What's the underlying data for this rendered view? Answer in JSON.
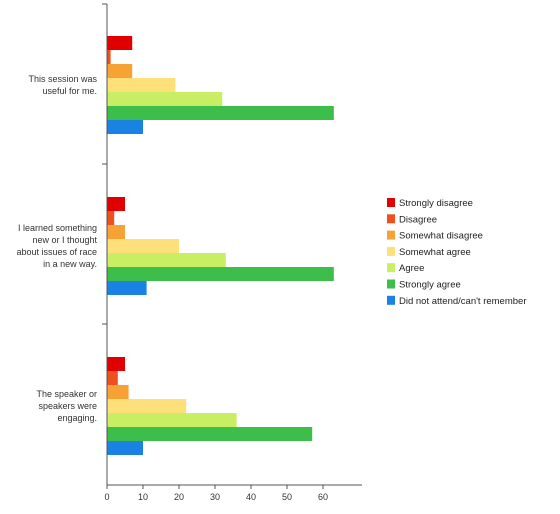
{
  "chart_data": {
    "type": "bar",
    "orientation": "horizontal",
    "categories": [
      [
        "This session was",
        "useful for me."
      ],
      [
        "I learned something",
        "new or I thought",
        "about issues of race",
        "in a new way."
      ],
      [
        "The speaker or",
        "speakers were",
        "engaging."
      ]
    ],
    "series": [
      {
        "name": "Strongly disagree",
        "color": "#e00000",
        "values": [
          7,
          5,
          5
        ]
      },
      {
        "name": "Disagree",
        "color": "#f0501e",
        "values": [
          1,
          2,
          3
        ]
      },
      {
        "name": "Somewhat disagree",
        "color": "#f7a234",
        "values": [
          7,
          5,
          6
        ]
      },
      {
        "name": "Somewhat agree",
        "color": "#fde07a",
        "values": [
          19,
          20,
          22
        ]
      },
      {
        "name": "Agree",
        "color": "#c8ef63",
        "values": [
          32,
          33,
          36
        ]
      },
      {
        "name": "Strongly agree",
        "color": "#3dbd4a",
        "values": [
          63,
          63,
          57
        ]
      },
      {
        "name": "Did not attend/can't remember",
        "color": "#1a82e2",
        "values": [
          10,
          11,
          10
        ]
      }
    ],
    "xlim": [
      0,
      70
    ],
    "xticks": [
      0,
      10,
      20,
      30,
      40,
      50,
      60
    ],
    "grid": false,
    "legend_position": "right"
  }
}
